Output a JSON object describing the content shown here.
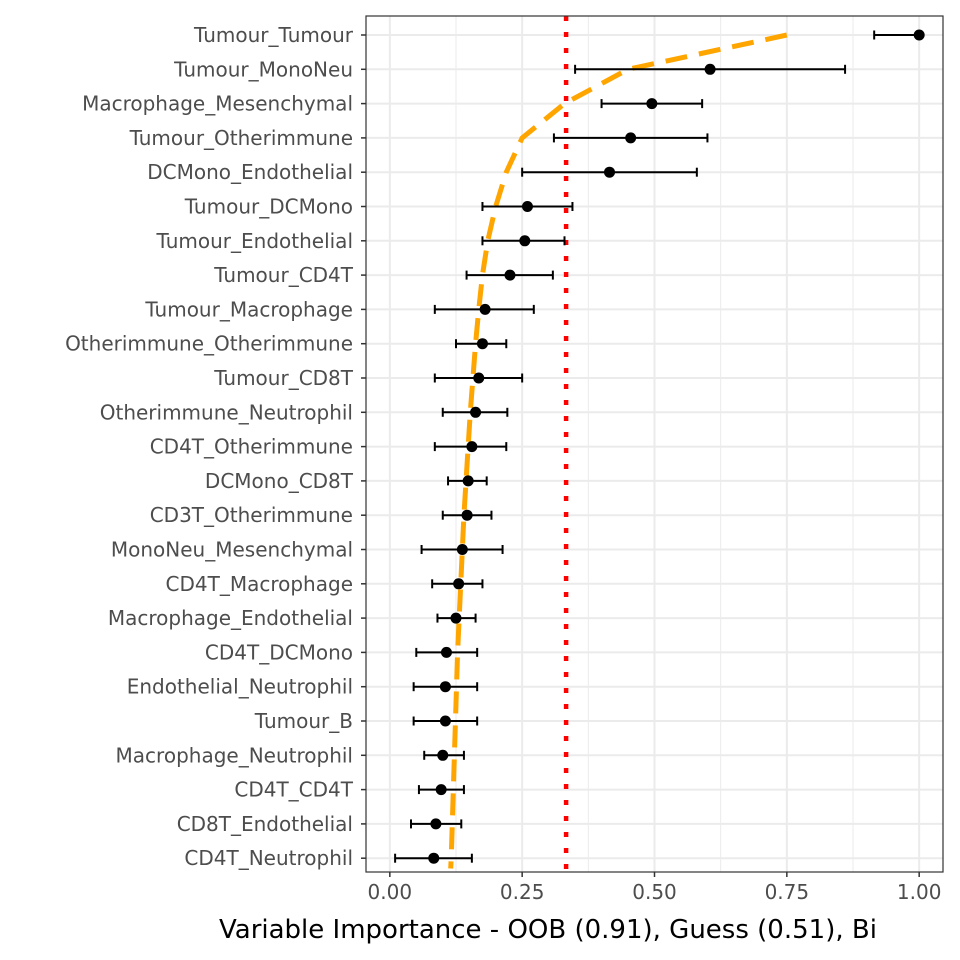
{
  "chart_data": {
    "type": "scatter",
    "title": "",
    "xlabel": "Variable Importance - OOB (0.91), Guess (0.51), Bi",
    "ylabel": "",
    "xlim": [
      -0.045,
      1.045
    ],
    "x_ticks": [
      0.0,
      0.25,
      0.5,
      0.75,
      1.0
    ],
    "x_tick_labels": [
      "0.00",
      "0.25",
      "0.50",
      "0.75",
      "1.00"
    ],
    "grid": true,
    "legend": "none",
    "categories": [
      "Tumour_Tumour",
      "Tumour_MonoNeu",
      "Macrophage_Mesenchymal",
      "Tumour_Otherimmune",
      "DCMono_Endothelial",
      "Tumour_DCMono",
      "Tumour_Endothelial",
      "Tumour_CD4T",
      "Tumour_Macrophage",
      "Otherimmune_Otherimmune",
      "Tumour_CD8T",
      "Otherimmune_Neutrophil",
      "CD4T_Otherimmune",
      "DCMono_CD8T",
      "CD3T_Otherimmune",
      "MonoNeu_Mesenchymal",
      "CD4T_Macrophage",
      "Macrophage_Endothelial",
      "CD4T_DCMono",
      "Endothelial_Neutrophil",
      "Tumour_B",
      "Macrophage_Neutrophil",
      "CD4T_CD4T",
      "CD8T_Endothelial",
      "CD4T_Neutrophil"
    ],
    "values": [
      1.0,
      0.605,
      0.495,
      0.455,
      0.415,
      0.26,
      0.255,
      0.227,
      0.18,
      0.175,
      0.168,
      0.162,
      0.155,
      0.148,
      0.146,
      0.137,
      0.13,
      0.125,
      0.107,
      0.105,
      0.105,
      0.1,
      0.097,
      0.087,
      0.083
    ],
    "error_low": [
      0.915,
      0.35,
      0.4,
      0.31,
      0.25,
      0.175,
      0.175,
      0.145,
      0.085,
      0.125,
      0.085,
      0.1,
      0.085,
      0.11,
      0.1,
      0.06,
      0.08,
      0.09,
      0.05,
      0.045,
      0.045,
      0.065,
      0.055,
      0.04,
      0.01
    ],
    "error_high": [
      1.0,
      0.86,
      0.59,
      0.6,
      0.58,
      0.345,
      0.33,
      0.308,
      0.272,
      0.22,
      0.25,
      0.222,
      0.22,
      0.183,
      0.192,
      0.213,
      0.175,
      0.162,
      0.165,
      0.165,
      0.165,
      0.14,
      0.14,
      0.135,
      0.155
    ],
    "threshold_line": {
      "x": 0.333,
      "color": "#ff0000",
      "style": "dotted"
    },
    "reference_curve": {
      "color": "#ffa500",
      "style": "dashed",
      "x": [
        0.75,
        0.45,
        0.33,
        0.25,
        0.22,
        0.2,
        0.185,
        0.175,
        0.168,
        0.162,
        0.157,
        0.152,
        0.148,
        0.144,
        0.14,
        0.137,
        0.134,
        0.131,
        0.128,
        0.126,
        0.124,
        0.122,
        0.12,
        0.118,
        0.116,
        0.115
      ],
      "y_rank": [
        0.0,
        1.0,
        2.0,
        3.0,
        4.0,
        5.0,
        6.0,
        7.0,
        8.0,
        9.0,
        10.0,
        11.0,
        12.0,
        13.0,
        14.0,
        15.0,
        16.0,
        17.0,
        18.0,
        19.0,
        20.0,
        21.0,
        22.0,
        23.0,
        24.0,
        24.3
      ]
    },
    "point_color": "#000000",
    "grid_color": "#ebebeb",
    "panel_border_color": "#333333"
  }
}
